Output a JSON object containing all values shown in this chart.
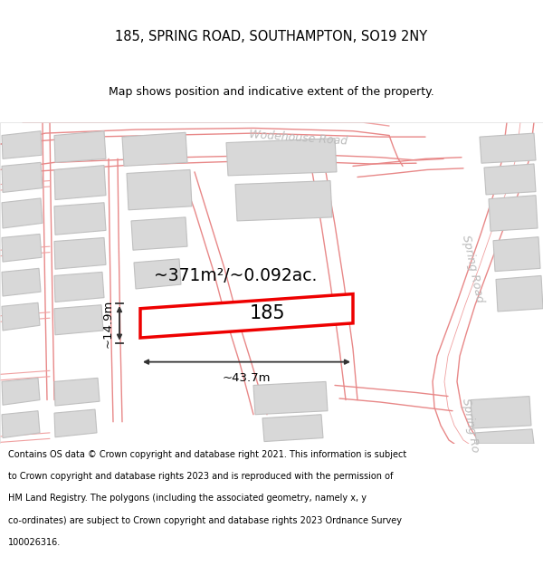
{
  "title_line1": "185, SPRING ROAD, SOUTHAMPTON, SO19 2NY",
  "title_line2": "Map shows position and indicative extent of the property.",
  "footer_lines": [
    "Contains OS data © Crown copyright and database right 2021. This information is subject",
    "to Crown copyright and database rights 2023 and is reproduced with the permission of",
    "HM Land Registry. The polygons (including the associated geometry, namely x, y",
    "co-ordinates) are subject to Crown copyright and database rights 2023 Ordnance Survey",
    "100026316."
  ],
  "map_bg": "#ffffff",
  "road_line_color": "#f0a0a0",
  "road_line_color2": "#e88888",
  "building_fill": "#d8d8d8",
  "building_edge": "#c0c0c0",
  "highlight_color": "#ee0000",
  "dimension_color": "#333333",
  "road_label_color": "#bbbbbb",
  "area_text": "~371m²/~0.092ac.",
  "label_185": "185",
  "dim_width": "~43.7m",
  "dim_height": "~14.9m",
  "road_label_wodehouse": "Wodehouse Road",
  "road_label_spring1": "Spring Road",
  "road_label_spring2": "Spring Ro"
}
